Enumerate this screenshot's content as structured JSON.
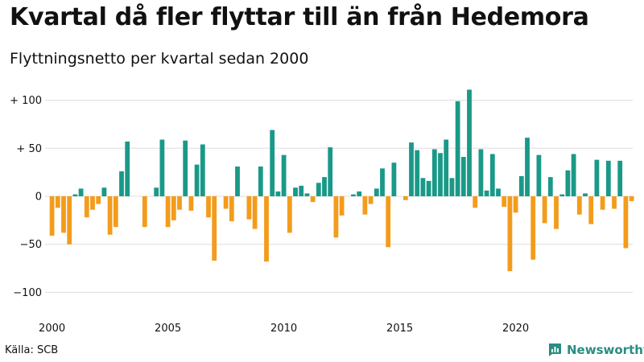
{
  "title": "Kvartal då fler flyttar till än från Hedemora",
  "subtitle": "Flyttningsnetto per kvartal sedan 2000",
  "source": "Källa: SCB",
  "brand": {
    "name": "Newsworthy",
    "icon": "newsworthy-logo-icon",
    "color": "#2a8c82"
  },
  "colors": {
    "positive": "#1a9988",
    "negative": "#f39c1c",
    "grid": "#dddddd"
  },
  "chart_data": {
    "type": "bar",
    "title": "Kvartal då fler flyttar till än från Hedemora",
    "subtitle": "Flyttningsnetto per kvartal sedan 2000",
    "xlabel": "",
    "ylabel": "",
    "x_start": "2000-Q1",
    "x_tick_labels": [
      "2000",
      "2005",
      "2010",
      "2015",
      "2020"
    ],
    "y_ticks": [
      {
        "value": 100,
        "label": "+ 100"
      },
      {
        "value": 50,
        "label": "+  50"
      },
      {
        "value": 0,
        "label": "0"
      },
      {
        "value": -50,
        "label": "−50"
      },
      {
        "value": -100,
        "label": "−100"
      }
    ],
    "ylim": [
      -110,
      115
    ],
    "grid": true,
    "legend": "none",
    "values": [
      -41,
      -12,
      -38,
      -50,
      2,
      8,
      -22,
      -14,
      -8,
      9,
      -40,
      -32,
      26,
      57,
      0,
      0,
      -32,
      0,
      9,
      59,
      -32,
      -25,
      -14,
      58,
      -15,
      33,
      54,
      -22,
      -67,
      0,
      -13,
      -26,
      31,
      0,
      -24,
      -34,
      31,
      -68,
      69,
      5,
      43,
      -38,
      9,
      11,
      3,
      -6,
      14,
      20,
      51,
      -43,
      -20,
      0,
      2,
      5,
      -19,
      -8,
      8,
      29,
      -53,
      35,
      0,
      -4,
      56,
      48,
      19,
      16,
      49,
      45,
      59,
      19,
      99,
      41,
      111,
      -12,
      49,
      6,
      44,
      8,
      -11,
      -78,
      -17,
      21,
      61,
      -66,
      43,
      -28,
      20,
      -34,
      2,
      27,
      44,
      -19,
      3,
      -29,
      38,
      -14,
      37,
      -13,
      37,
      -54,
      -5
    ]
  }
}
